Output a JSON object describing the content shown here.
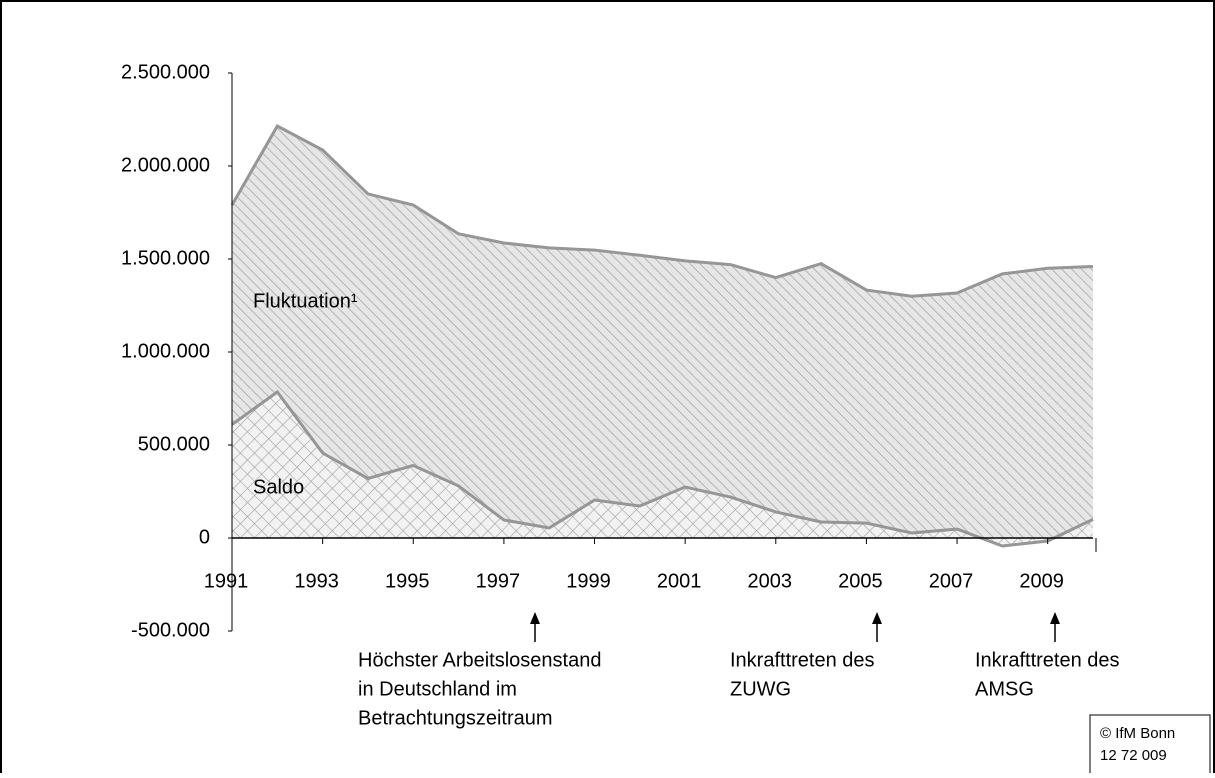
{
  "chart_data": {
    "type": "area",
    "x": [
      1991,
      1992,
      1993,
      1994,
      1995,
      1996,
      1997,
      1998,
      1999,
      2000,
      2001,
      2002,
      2003,
      2004,
      2005,
      2006,
      2007,
      2008,
      2009,
      2010
    ],
    "xlim": [
      1991,
      2010
    ],
    "xticks": [
      1991,
      1993,
      1995,
      1997,
      1999,
      2001,
      2003,
      2005,
      2007,
      2009
    ],
    "ylim": [
      -500000,
      2500000
    ],
    "yticks": [
      {
        "value": -500000,
        "label": "-500.000"
      },
      0,
      {
        "value": 500000,
        "label": "500.000"
      },
      {
        "value": 1000000,
        "label": "1.000.000"
      },
      {
        "value": 1500000,
        "label": "1.500.000"
      },
      {
        "value": 2000000,
        "label": "2.000.000"
      },
      {
        "value": 2500000,
        "label": "2.500.000"
      }
    ],
    "series": [
      {
        "name": "Fluktuation¹",
        "color": "#969696",
        "pattern": "hatch",
        "values": [
          1790000,
          2215000,
          2086000,
          1850000,
          1790000,
          1635000,
          1586000,
          1560000,
          1548000,
          1520000,
          1490000,
          1470000,
          1400000,
          1475000,
          1333000,
          1300000,
          1317000,
          1420000,
          1450000,
          1460000
        ]
      },
      {
        "name": "Saldo",
        "color": "#969696",
        "pattern": "crosshatch",
        "values": [
          610000,
          785000,
          457000,
          320000,
          390000,
          280000,
          97000,
          54000,
          204000,
          172000,
          274000,
          220000,
          140000,
          86000,
          80000,
          27000,
          48000,
          -43000,
          -16000,
          100000
        ]
      }
    ],
    "annotations": [
      {
        "lines": [
          "Höchster Arbeitslosenstand",
          "in Deutschland im",
          "Betrachtungszeitraum"
        ]
      },
      {
        "lines": [
          "Inkrafttreten des",
          "ZUWG"
        ]
      },
      {
        "lines": [
          "Inkrafttreten des",
          "AMSG"
        ]
      }
    ],
    "source": [
      "© IfM Bonn",
      "12 72 009"
    ]
  }
}
